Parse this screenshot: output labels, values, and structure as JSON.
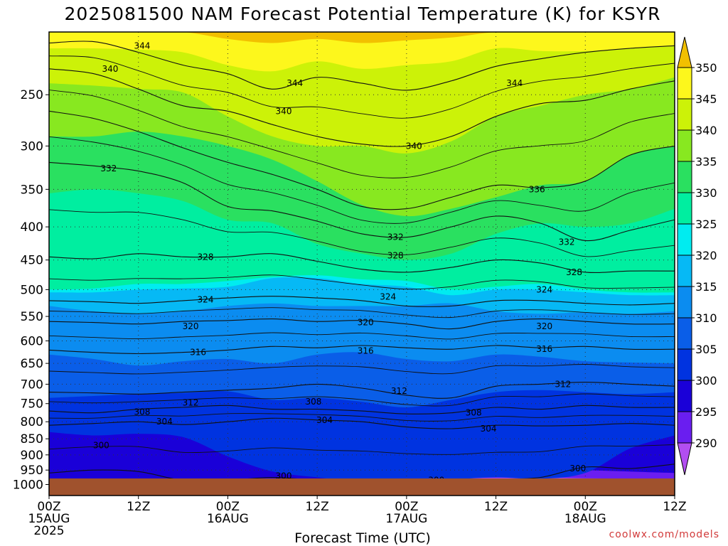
{
  "chart_data": {
    "type": "heatmap",
    "title": "2025081500 NAM Forecast Potential Temperature (K) for KSYR",
    "xlabel": "Forecast Time (UTC)",
    "ylabel": "",
    "credit": "coolwx.com/models",
    "x_ticks": [
      {
        "h": 0,
        "lines": [
          "00Z",
          "15AUG",
          "2025"
        ]
      },
      {
        "h": 12,
        "lines": [
          "12Z"
        ]
      },
      {
        "h": 24,
        "lines": [
          "00Z",
          "16AUG"
        ]
      },
      {
        "h": 36,
        "lines": [
          "12Z"
        ]
      },
      {
        "h": 48,
        "lines": [
          "00Z",
          "17AUG"
        ]
      },
      {
        "h": 60,
        "lines": [
          "12Z"
        ]
      },
      {
        "h": 72,
        "lines": [
          "00Z",
          "18AUG"
        ]
      },
      {
        "h": 84,
        "lines": [
          "12Z"
        ]
      }
    ],
    "xlim": [
      0,
      84
    ],
    "y_scale": "log-pressure",
    "y_ticks": [
      250,
      300,
      350,
      400,
      450,
      500,
      550,
      600,
      650,
      700,
      750,
      800,
      850,
      900,
      950,
      1000
    ],
    "ylim_hPa": [
      200,
      1040
    ],
    "grid": true,
    "colorbar": {
      "ticks": [
        290,
        295,
        300,
        305,
        310,
        315,
        320,
        325,
        330,
        335,
        340,
        345,
        350
      ],
      "bins": [
        {
          "lo": 285,
          "hi": 290,
          "color": "#b24ef0"
        },
        {
          "lo": 290,
          "hi": 295,
          "color": "#6a1ef0"
        },
        {
          "lo": 295,
          "hi": 300,
          "color": "#1a00d8"
        },
        {
          "lo": 300,
          "hi": 305,
          "color": "#0033e0"
        },
        {
          "lo": 305,
          "hi": 310,
          "color": "#0a5ee8"
        },
        {
          "lo": 310,
          "hi": 315,
          "color": "#0b8cf0"
        },
        {
          "lo": 315,
          "hi": 320,
          "color": "#06b9f5"
        },
        {
          "lo": 320,
          "hi": 325,
          "color": "#00ecf0"
        },
        {
          "lo": 325,
          "hi": 330,
          "color": "#00eea0"
        },
        {
          "lo": 330,
          "hi": 335,
          "color": "#2ae060"
        },
        {
          "lo": 335,
          "hi": 340,
          "color": "#88e820"
        },
        {
          "lo": 340,
          "hi": 345,
          "color": "#ccf208"
        },
        {
          "lo": 345,
          "hi": 350,
          "color": "#fdf71c"
        },
        {
          "lo": 350,
          "hi": 355,
          "color": "#f2c000"
        }
      ]
    },
    "band_boundaries": [
      {
        "theta": 290,
        "pressures": [
          1000,
          1000,
          1000,
          1000,
          1000,
          1000,
          1000,
          1000,
          982,
          978,
          976,
          975,
          978,
          980,
          985
        ]
      },
      {
        "theta": 295,
        "pressures": [
          1000,
          1000,
          1000,
          1000,
          1000,
          1000,
          1000,
          1000,
          960,
          950,
          948,
          946,
          950,
          955,
          960
        ]
      },
      {
        "theta": 300,
        "pressures": [
          830,
          840,
          835,
          845,
          905,
          955,
          975,
          990,
          985,
          982,
          975,
          980,
          960,
          880,
          840
        ]
      },
      {
        "theta": 305,
        "pressures": [
          735,
          730,
          725,
          722,
          718,
          740,
          735,
          745,
          760,
          740,
          720,
          715,
          720,
          725,
          720
        ]
      },
      {
        "theta": 310,
        "pressures": [
          630,
          640,
          655,
          645,
          640,
          650,
          630,
          625,
          640,
          645,
          630,
          635,
          645,
          648,
          650
        ]
      },
      {
        "theta": 315,
        "pressures": [
          530,
          540,
          545,
          540,
          530,
          525,
          530,
          530,
          530,
          525,
          540,
          545,
          542,
          545,
          540
        ]
      },
      {
        "theta": 320,
        "pressures": [
          505,
          505,
          500,
          498,
          495,
          480,
          480,
          490,
          495,
          510,
          500,
          500,
          505,
          510,
          510
        ]
      },
      {
        "theta": 325,
        "pressures": [
          500,
          498,
          490,
          490,
          485,
          478,
          475,
          482,
          485,
          500,
          495,
          490,
          500,
          505,
          505
        ]
      },
      {
        "theta": 330,
        "pressures": [
          355,
          350,
          355,
          365,
          390,
          395,
          425,
          440,
          450,
          440,
          410,
          395,
          400,
          395,
          375
        ]
      },
      {
        "theta": 335,
        "pressures": [
          290,
          290,
          285,
          290,
          300,
          315,
          340,
          370,
          385,
          375,
          360,
          345,
          340,
          310,
          300
        ]
      },
      {
        "theta": 340,
        "pressures": [
          240,
          242,
          245,
          248,
          270,
          290,
          300,
          300,
          308,
          295,
          270,
          260,
          250,
          245,
          235
        ]
      },
      {
        "theta": 345,
        "pressures": [
          212,
          212,
          213,
          215,
          225,
          230,
          222,
          228,
          225,
          222,
          212,
          214,
          214,
          212,
          210
        ]
      },
      {
        "theta": 350,
        "pressures": [
          200,
          200,
          200,
          200,
          205,
          208,
          205,
          208,
          206,
          204,
          200,
          200,
          200,
          200,
          200
        ]
      }
    ],
    "contours": [
      {
        "theta": 344,
        "pressures": [
          208,
          207,
          215,
          225,
          232,
          245,
          235,
          240,
          246,
          238,
          226,
          220,
          215,
          212,
          210
        ]
      },
      {
        "theta": 340,
        "pressures": [
          228,
          232,
          245,
          260,
          265,
          278,
          290,
          298,
          300,
          290,
          270,
          258,
          255,
          245,
          238
        ]
      },
      {
        "theta": 336,
        "pressures": [
          265,
          272,
          285,
          302,
          318,
          332,
          350,
          372,
          375,
          360,
          345,
          348,
          340,
          310,
          300
        ]
      },
      {
        "theta": 332,
        "pressures": [
          318,
          322,
          328,
          342,
          372,
          378,
          392,
          410,
          415,
          400,
          385,
          395,
          420,
          405,
          390
        ]
      },
      {
        "theta": 328,
        "pressures": [
          445,
          448,
          440,
          445,
          445,
          440,
          452,
          465,
          470,
          462,
          450,
          455,
          470,
          468,
          468
        ]
      },
      {
        "theta": 324,
        "pressures": [
          520,
          522,
          525,
          520,
          515,
          512,
          515,
          520,
          530,
          530,
          520,
          520,
          525,
          528,
          525
        ]
      },
      {
        "theta": 320,
        "pressures": [
          560,
          562,
          565,
          560,
          558,
          555,
          560,
          558,
          565,
          575,
          560,
          555,
          560,
          565,
          565
        ]
      },
      {
        "theta": 316,
        "pressures": [
          620,
          625,
          628,
          625,
          620,
          612,
          615,
          610,
          615,
          618,
          610,
          615,
          612,
          618,
          618
        ]
      },
      {
        "theta": 312,
        "pressures": [
          720,
          722,
          725,
          720,
          715,
          710,
          700,
          710,
          728,
          735,
          705,
          700,
          695,
          700,
          705
        ]
      },
      {
        "theta": 308,
        "pressures": [
          770,
          775,
          765,
          760,
          755,
          765,
          765,
          770,
          778,
          775,
          760,
          765,
          755,
          760,
          760
        ]
      },
      {
        "theta": 304,
        "pressures": [
          810,
          805,
          800,
          808,
          800,
          790,
          795,
          800,
          815,
          820,
          810,
          812,
          810,
          805,
          810
        ]
      },
      {
        "theta": 300,
        "pressures": [
          960,
          950,
          955,
          985,
          985,
          975,
          985,
          985,
          985,
          985,
          982,
          975,
          940,
          945,
          930
        ]
      }
    ],
    "contour_labels": [
      {
        "text": "344",
        "h": 12.5,
        "p": 210
      },
      {
        "text": "340",
        "h": 8.2,
        "p": 228
      },
      {
        "text": "344",
        "h": 33.0,
        "p": 240
      },
      {
        "text": "340",
        "h": 31.5,
        "p": 265
      },
      {
        "text": "344",
        "h": 62.5,
        "p": 240
      },
      {
        "text": "332",
        "h": 8.0,
        "p": 325
      },
      {
        "text": "340",
        "h": 49.0,
        "p": 300
      },
      {
        "text": "336",
        "h": 65.5,
        "p": 350
      },
      {
        "text": "332",
        "h": 46.5,
        "p": 415
      },
      {
        "text": "332",
        "h": 69.5,
        "p": 422
      },
      {
        "text": "328",
        "h": 21.0,
        "p": 445
      },
      {
        "text": "328",
        "h": 46.5,
        "p": 443
      },
      {
        "text": "328",
        "h": 70.5,
        "p": 470
      },
      {
        "text": "324",
        "h": 21.0,
        "p": 518
      },
      {
        "text": "324",
        "h": 45.5,
        "p": 513
      },
      {
        "text": "324",
        "h": 66.5,
        "p": 500
      },
      {
        "text": "320",
        "h": 19.0,
        "p": 570
      },
      {
        "text": "320",
        "h": 42.5,
        "p": 562
      },
      {
        "text": "320",
        "h": 66.5,
        "p": 570
      },
      {
        "text": "316",
        "h": 20.0,
        "p": 625
      },
      {
        "text": "316",
        "h": 42.5,
        "p": 622
      },
      {
        "text": "316",
        "h": 66.5,
        "p": 618
      },
      {
        "text": "312",
        "h": 47.0,
        "p": 717
      },
      {
        "text": "312",
        "h": 69.0,
        "p": 700
      },
      {
        "text": "312",
        "h": 19.0,
        "p": 748
      },
      {
        "text": "308",
        "h": 35.5,
        "p": 745
      },
      {
        "text": "308",
        "h": 12.5,
        "p": 773
      },
      {
        "text": "308",
        "h": 57.0,
        "p": 775
      },
      {
        "text": "304",
        "h": 15.5,
        "p": 800
      },
      {
        "text": "304",
        "h": 37.0,
        "p": 795
      },
      {
        "text": "304",
        "h": 59.0,
        "p": 820
      },
      {
        "text": "300",
        "h": 7.0,
        "p": 870
      },
      {
        "text": "300",
        "h": 31.5,
        "p": 970
      },
      {
        "text": "300",
        "h": 52.0,
        "p": 985
      },
      {
        "text": "300",
        "h": 71.0,
        "p": 945
      }
    ]
  }
}
